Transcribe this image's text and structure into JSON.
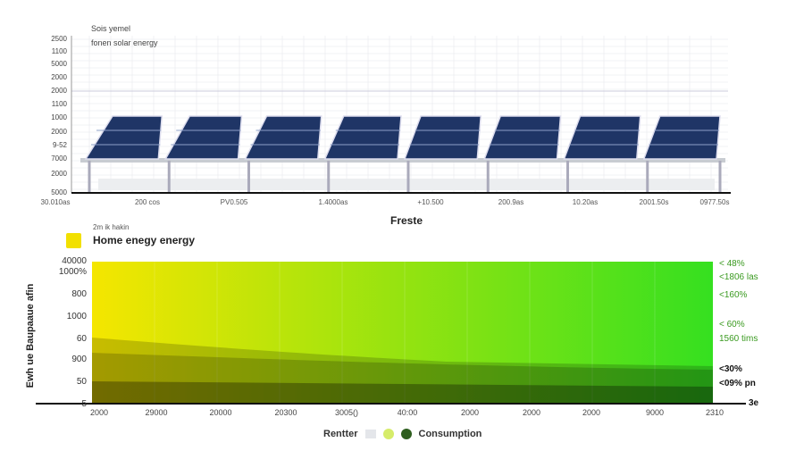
{
  "top_chart": {
    "subtitle_line1": "Sois yemel",
    "subtitle_line2": "fonen solar energy",
    "y_ticks": [
      "2500",
      "1100",
      "5000",
      "2000",
      "2000",
      "1100",
      "1000",
      "2000",
      "9-52",
      "7000",
      "2000",
      "5000"
    ],
    "x_ticks": [
      "30.010as",
      "200 cos",
      "PV0.505",
      "1.4000as",
      "+10.500",
      "200.9as",
      "10.20as",
      "2001.50s",
      "0977.50s"
    ],
    "x_title": "Freste",
    "panel_count": 8,
    "colors": {
      "panel": "#1f3566",
      "frame": "#c8ccd2",
      "grid": "#e6e8ec"
    }
  },
  "legend_top": {
    "small_label": "2m ik hakin",
    "label": "Home enegy energy",
    "swatch_color": "#f2e000"
  },
  "chart_data": {
    "type": "area",
    "y_label": "Ewh ue Baupaaue afin",
    "y_ticks": [
      "40000",
      "1000%",
      "800",
      "1000",
      "60",
      "900",
      "50",
      "5"
    ],
    "x_ticks": [
      "2000",
      "29000",
      "20000",
      "20300",
      "3005()",
      "40:00",
      "2000",
      "2000",
      "2000",
      "9000",
      "2310"
    ],
    "right_labels": [
      {
        "text": "< 48%",
        "color": "#3a9a20"
      },
      {
        "text": "<1806 las",
        "color": "#3a9a20"
      },
      {
        "text": "<160%",
        "color": "#3a9a20"
      },
      {
        "text": "< 60%",
        "color": "#3a9a20"
      },
      {
        "text": "1560 tims",
        "color": "#3a9a20"
      },
      {
        "text": "<30%",
        "color": "#111111"
      },
      {
        "text": "<09% pn",
        "color": "#111111"
      }
    ],
    "right_axis_end_label": "3e",
    "gradient_colors": [
      "#f5e600",
      "#35e020"
    ],
    "grid": true,
    "legend_position": "bottom",
    "legend": [
      {
        "name": "Rentter",
        "color": "#e4e6ea"
      },
      {
        "name": "",
        "color": "#d6ec6a"
      },
      {
        "name": "Consumption",
        "color": "#2e5e1e"
      }
    ]
  }
}
